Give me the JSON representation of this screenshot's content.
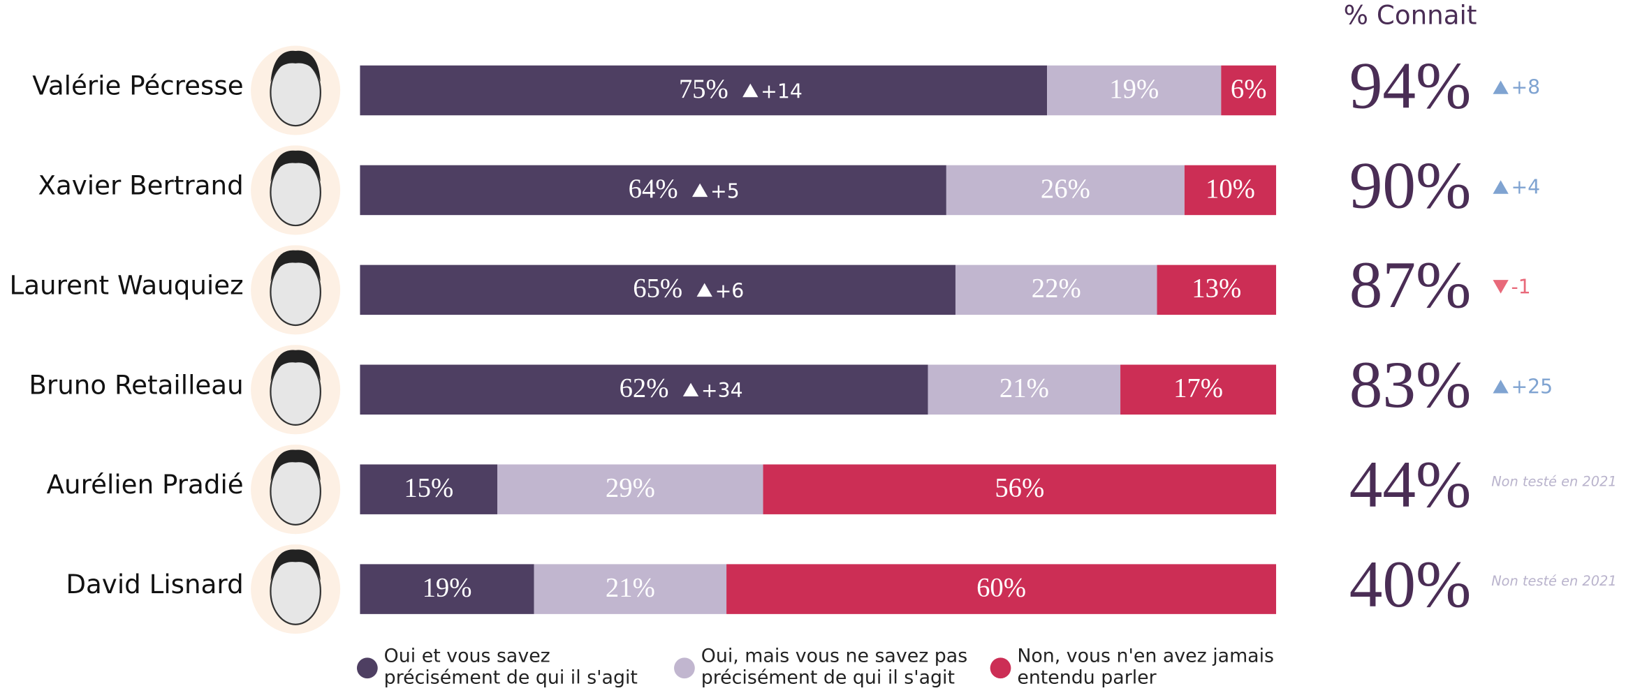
{
  "chart_data": {
    "type": "bar",
    "orientation": "horizontal",
    "stacked": true,
    "categories": [
      "Valérie Pécresse",
      "Xavier Bertrand",
      "Laurent Wauquiez",
      "Bruno Retailleau",
      "Aurélien Pradié",
      "David Lisnard"
    ],
    "xlim": [
      0,
      100
    ],
    "series": [
      {
        "name": "Oui et vous savez précisément de qui il s'agit",
        "color": "#4e3f62",
        "values": [
          75,
          64,
          65,
          62,
          15,
          19
        ],
        "value_labels": [
          "75%",
          "64%",
          "65%",
          "62%",
          "15%",
          "19%"
        ],
        "changes": [
          14,
          5,
          6,
          34,
          null,
          null
        ],
        "change_labels": [
          "+14",
          "+5",
          "+6",
          "+34",
          null,
          null
        ]
      },
      {
        "name": "Oui, mais vous ne savez pas précisément de qui il s'agit",
        "color": "#c1b6cf",
        "values": [
          19,
          26,
          22,
          21,
          29,
          21
        ],
        "value_labels": [
          "19%",
          "26%",
          "22%",
          "21%",
          "29%",
          "21%"
        ]
      },
      {
        "name": "Non, vous n'en avez jamais entendu parler",
        "color": "#cc2e55",
        "values": [
          6,
          10,
          13,
          17,
          56,
          60
        ],
        "value_labels": [
          "6%",
          "10%",
          "13%",
          "17%",
          "56%",
          "60%"
        ]
      }
    ],
    "known": {
      "title": "% Connait",
      "color": "#4a2d55",
      "values": [
        94,
        90,
        87,
        83,
        44,
        40
      ],
      "value_labels": [
        "94%",
        "90%",
        "87%",
        "83%",
        "44%",
        "40%"
      ],
      "changes": [
        8,
        4,
        -1,
        25,
        null,
        null
      ],
      "change_labels": [
        "+8",
        "+4",
        "-1",
        "+25",
        null,
        null
      ],
      "up_color": "#7fa3d1",
      "down_color": "#e8697a",
      "not_tested_label": "Non testé en 2021"
    }
  }
}
